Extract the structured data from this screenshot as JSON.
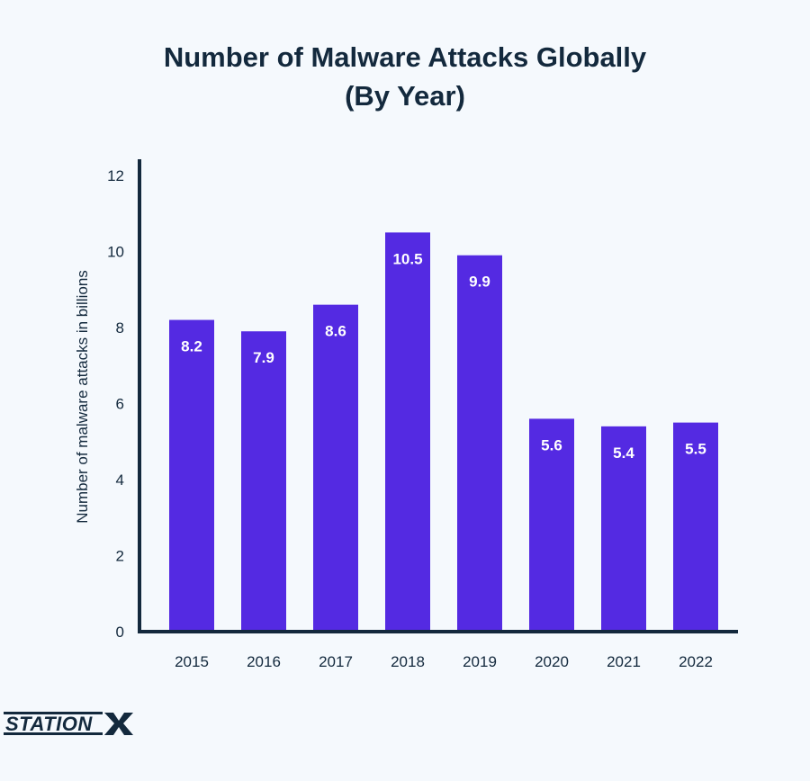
{
  "chart_data": {
    "type": "bar",
    "title": [
      "Number of Malware Attacks Globally",
      "(By Year)"
    ],
    "xlabel": "",
    "ylabel": "Number of malware attacks in billions",
    "ylim": [
      0,
      12
    ],
    "yticks": [
      0,
      2,
      4,
      6,
      8,
      10,
      12
    ],
    "categories": [
      "2015",
      "2016",
      "2017",
      "2018",
      "2019",
      "2020",
      "2021",
      "2022"
    ],
    "values": [
      8.2,
      7.9,
      8.6,
      10.5,
      9.9,
      5.6,
      5.4,
      5.5
    ],
    "data_labels": [
      "8.2",
      "7.9",
      "8.6",
      "10.5",
      "9.9",
      "5.6",
      "5.4",
      "5.5"
    ],
    "grid": false,
    "legend": "none"
  },
  "colors": {
    "bar": "#542ae2",
    "axis": "#13293d",
    "text": "#13293d",
    "label": "#ffffff",
    "background": "#f5f9fd"
  },
  "brand": {
    "logo_text": "STATIONX"
  }
}
